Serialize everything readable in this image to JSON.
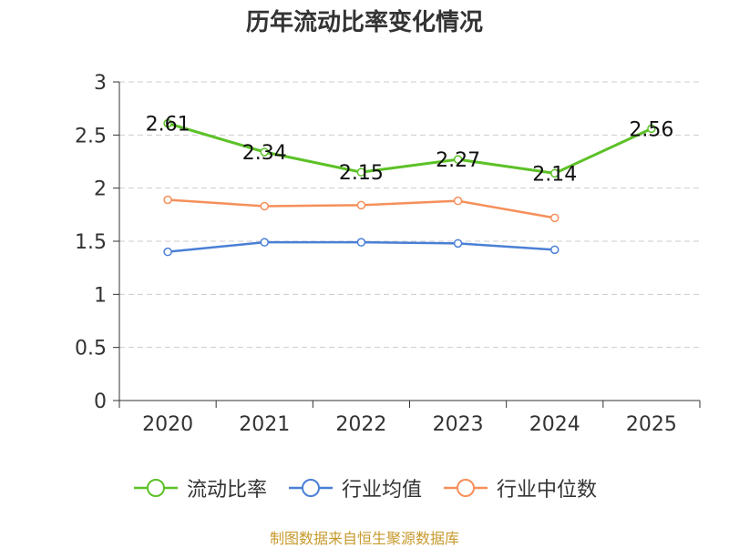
{
  "chart_data": {
    "type": "line",
    "title": "历年流动比率变化情况",
    "categories": [
      "2020",
      "2021",
      "2022",
      "2023",
      "2024",
      "2025"
    ],
    "ylim": [
      0,
      3
    ],
    "yticks": [
      "0",
      "0.5",
      "1",
      "1.5",
      "2",
      "2.5",
      "3"
    ],
    "grid": true,
    "legend_position": "bottom",
    "series": [
      {
        "name": "流动比率",
        "color": "#5cc127",
        "values": [
          2.61,
          2.34,
          2.15,
          2.27,
          2.14,
          2.56
        ],
        "labels": [
          "2.61",
          "2.34",
          "2.15",
          "2.27",
          "2.14",
          "2.56"
        ]
      },
      {
        "name": "行业均值",
        "color": "#4a7fd6",
        "values": [
          1.4,
          1.49,
          1.49,
          1.48,
          1.42,
          null
        ]
      },
      {
        "name": "行业中位数",
        "color": "#f68f5a",
        "values": [
          1.89,
          1.83,
          1.84,
          1.88,
          1.72,
          null
        ]
      }
    ]
  },
  "source": "制图数据来自恒生聚源数据库"
}
